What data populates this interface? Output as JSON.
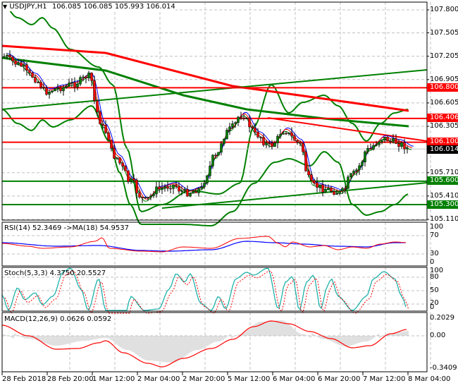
{
  "header": {
    "dropdown_icon": "triangle-down-icon",
    "symbol": "USDJPY,H1",
    "ohlc": "106.085 106.085 105.993 106.014"
  },
  "price_axis": {
    "ticks": [
      "107.800",
      "107.505",
      "107.205",
      "106.905",
      "106.605",
      "106.305",
      "105.710",
      "105.410",
      "105.110"
    ],
    "tags": [
      {
        "label": "106.800",
        "color": "#ff0000"
      },
      {
        "label": "106.406",
        "color": "#ff0000"
      },
      {
        "label": "106.100",
        "color": "#ff0000"
      },
      {
        "label": "106.014",
        "color": "#000000"
      },
      {
        "label": "105.600",
        "color": "#008000"
      },
      {
        "label": "105.300",
        "color": "#008000"
      }
    ]
  },
  "rsi": {
    "title": "RSI(14) 52.3469  ->MA(18) 54.9537",
    "ticks": [
      "100",
      "70",
      "30",
      "0"
    ]
  },
  "stoch": {
    "title": "Stoch(5,3,3) 4.3750 20.5527",
    "ticks": [
      "100",
      "80",
      "50",
      "20",
      "0"
    ]
  },
  "macd": {
    "title": "MACD(12,26,9) 0.0626 0.0592",
    "ticks": [
      "0.2029",
      "0.00",
      "-0.3409"
    ]
  },
  "time_axis": {
    "labels": [
      "28 Feb 2018",
      "28 Feb 20:00",
      "1 Mar 12:00",
      "2 Mar 04:00",
      "2 Mar 20:00",
      "5 Mar 12:00",
      "6 Mar 04:00",
      "6 Mar 20:00",
      "7 Mar 12:00",
      "8 Mar 04:00"
    ]
  },
  "colors": {
    "bull_candle": "#008000",
    "bear_candle": "#ff0000",
    "resistance": "#ff0000",
    "support": "#008000",
    "rsi_line": "#ff0000",
    "rsi_ma": "#0000ff",
    "stoch_main": "#20b2aa",
    "stoch_signal": "#ff0000",
    "macd_hist": "#c0c0c0",
    "macd_signal": "#ff0000"
  },
  "chart_data": [
    {
      "type": "candlestick",
      "title": "USDJPY,H1",
      "ohlc_last": {
        "open": 106.085,
        "high": 106.085,
        "low": 105.993,
        "close": 106.014
      },
      "x_labels": [
        "28 Feb 2018",
        "28 Feb 20:00",
        "1 Mar 12:00",
        "2 Mar 04:00",
        "2 Mar 20:00",
        "5 Mar 12:00",
        "6 Mar 04:00",
        "6 Mar 20:00",
        "7 Mar 12:00",
        "8 Mar 04:00"
      ],
      "ylim": [
        105.11,
        107.8
      ],
      "y_ticks": [
        107.8,
        107.505,
        107.205,
        106.905,
        106.605,
        106.305,
        105.71,
        105.41,
        105.11
      ],
      "horizontal_levels": [
        {
          "price": 106.8,
          "color": "red",
          "type": "resistance"
        },
        {
          "price": 106.406,
          "color": "red",
          "type": "resistance"
        },
        {
          "price": 106.1,
          "color": "red",
          "type": "resistance"
        },
        {
          "price": 105.6,
          "color": "green",
          "type": "support"
        },
        {
          "price": 105.3,
          "color": "green",
          "type": "support"
        }
      ],
      "approx_close_path": [
        107.2,
        107.1,
        106.95,
        106.75,
        106.8,
        106.85,
        106.95,
        106.3,
        105.9,
        105.6,
        105.35,
        105.5,
        105.55,
        105.45,
        105.5,
        105.9,
        106.25,
        106.45,
        106.2,
        106.05,
        106.25,
        106.1,
        105.55,
        105.5,
        105.45,
        105.7,
        106.0,
        106.15,
        106.1,
        106.014
      ],
      "overlays": [
        "Bollinger Bands (green)",
        "Moving averages (red, blue, green thin)",
        "Long MA (thick red)",
        "Long MA (thick green)",
        "Trendlines"
      ],
      "grid": true
    },
    {
      "type": "line",
      "title": "RSI(14) 52.3469 ->MA(18) 54.9537",
      "ylim": [
        0,
        100
      ],
      "y_ticks": [
        100,
        70,
        30,
        0
      ],
      "series": [
        {
          "name": "RSI(14)",
          "last": 52.3469
        },
        {
          "name": "MA(18)",
          "last": 54.9537
        }
      ]
    },
    {
      "type": "line",
      "title": "Stoch(5,3,3) 4.3750 20.5527",
      "ylim": [
        0,
        100
      ],
      "y_ticks": [
        100,
        80,
        50,
        20,
        0
      ],
      "series": [
        {
          "name": "%K",
          "last": 4.375
        },
        {
          "name": "%D",
          "last": 20.5527
        }
      ]
    },
    {
      "type": "bar",
      "title": "MACD(12,26,9) 0.0626 0.0592",
      "ylim": [
        -0.3409,
        0.2029
      ],
      "y_ticks": [
        0.2029,
        0.0,
        -0.3409
      ],
      "series": [
        {
          "name": "MACD",
          "last": 0.0626
        },
        {
          "name": "Signal",
          "last": 0.0592
        }
      ]
    }
  ]
}
